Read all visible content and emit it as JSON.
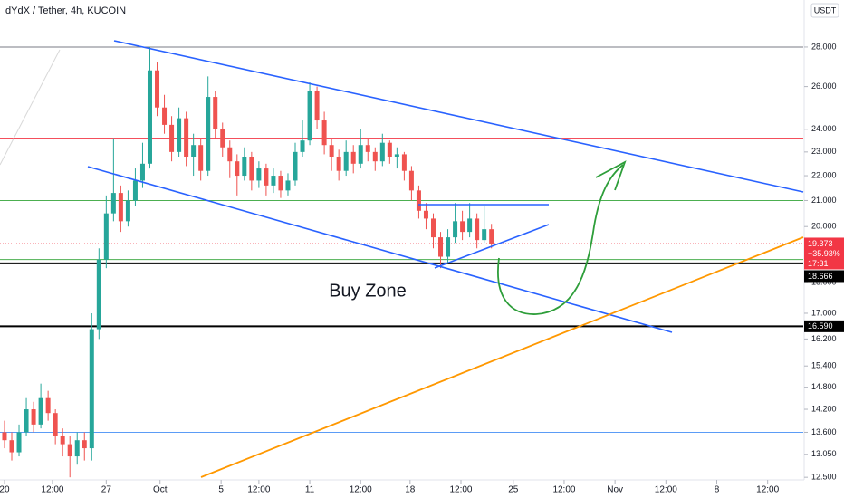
{
  "chart_data": {
    "type": "candlestick",
    "title": "dYdX / Tether, 4h, KUCOIN",
    "currency": "USDT",
    "annotation": "Buy Zone",
    "log_scale": true,
    "up_color": "#26a69a",
    "down_color": "#ef5350",
    "x": [
      0,
      0.5,
      1,
      1.5,
      2,
      2.5,
      3,
      3.5,
      4,
      4.5,
      5,
      5.5,
      6,
      6.5,
      7,
      7.5,
      8,
      8.5,
      9,
      9.5,
      10,
      10.5,
      11,
      11.5,
      12,
      12.5,
      13,
      13.5,
      14,
      14.5,
      15,
      15.5,
      16,
      16.5,
      17,
      17.5,
      18,
      18.5,
      19,
      19.5,
      20,
      20.5,
      21,
      21.5,
      22,
      22.5,
      23,
      23.5,
      24,
      24.5,
      25,
      25.5,
      26,
      26.5,
      27,
      27.5,
      28,
      28.5,
      29,
      29.5,
      30,
      30.5,
      31,
      31.5,
      32,
      32.5,
      33,
      33.5
    ],
    "open": [
      13.6,
      13.4,
      13.1,
      13.6,
      14.2,
      13.8,
      14.5,
      14.1,
      13.5,
      13.3,
      13.0,
      13.4,
      13.2,
      16.5,
      18.8,
      20.5,
      21.3,
      20.2,
      21.0,
      21.8,
      22.5,
      26.8,
      25.0,
      24.2,
      23.0,
      24.5,
      22.8,
      23.3,
      22.2,
      25.5,
      24.0,
      23.2,
      22.6,
      22.0,
      22.8,
      21.8,
      22.3,
      21.6,
      22.0,
      21.4,
      21.8,
      23.0,
      23.5,
      25.8,
      24.4,
      23.3,
      22.8,
      22.2,
      23.0,
      22.5,
      23.3,
      23.0,
      22.6,
      23.4,
      22.8,
      22.9,
      22.2,
      21.4,
      20.6,
      20.3,
      19.6,
      18.9,
      19.6,
      20.2,
      19.8,
      20.3,
      19.5,
      19.9
    ],
    "high": [
      13.9,
      13.6,
      13.8,
      14.5,
      14.4,
      14.9,
      14.7,
      14.2,
      13.7,
      13.5,
      13.6,
      13.6,
      17.0,
      19.2,
      21.2,
      23.6,
      21.6,
      21.4,
      22.3,
      23.4,
      28.0,
      27.2,
      25.6,
      24.6,
      25.0,
      24.8,
      23.8,
      23.6,
      26.5,
      25.8,
      24.3,
      23.5,
      22.9,
      23.2,
      23.0,
      22.6,
      22.5,
      22.3,
      22.2,
      22.1,
      23.4,
      24.4,
      26.2,
      26.0,
      24.8,
      23.6,
      23.1,
      23.5,
      23.3,
      24.0,
      23.6,
      23.2,
      23.8,
      23.5,
      23.2,
      23.0,
      22.4,
      21.6,
      20.9,
      20.5,
      19.8,
      19.9,
      20.9,
      20.6,
      20.9,
      20.5,
      20.8,
      20.1
    ],
    "low": [
      13.2,
      12.9,
      13.0,
      13.5,
      13.6,
      13.7,
      13.9,
      13.3,
      13.0,
      12.5,
      12.8,
      12.9,
      12.9,
      16.2,
      18.5,
      20.2,
      19.8,
      20.0,
      20.8,
      21.5,
      22.3,
      24.6,
      23.8,
      22.6,
      22.8,
      22.4,
      22.0,
      21.8,
      22.0,
      23.6,
      22.8,
      21.9,
      21.2,
      21.8,
      21.4,
      21.5,
      21.2,
      21.3,
      21.1,
      21.2,
      21.6,
      22.8,
      23.3,
      24.0,
      22.9,
      22.2,
      21.8,
      22.0,
      22.1,
      22.3,
      22.6,
      22.2,
      22.4,
      22.5,
      22.3,
      21.8,
      21.0,
      20.3,
      19.9,
      19.2,
      18.5,
      18.7,
      19.4,
      19.5,
      19.6,
      19.2,
      19.4,
      19.2
    ],
    "close": [
      13.4,
      13.1,
      13.6,
      14.2,
      13.8,
      14.5,
      14.1,
      13.5,
      13.3,
      13.0,
      13.4,
      13.2,
      16.5,
      18.8,
      20.5,
      21.3,
      20.2,
      21.0,
      21.8,
      22.5,
      26.8,
      25.0,
      24.2,
      23.0,
      24.5,
      22.8,
      23.3,
      22.2,
      25.5,
      24.0,
      23.2,
      22.6,
      22.0,
      22.8,
      21.8,
      22.3,
      21.6,
      22.0,
      21.4,
      21.8,
      23.0,
      23.5,
      25.8,
      24.4,
      23.3,
      22.8,
      22.2,
      23.0,
      22.5,
      23.3,
      23.0,
      22.6,
      23.4,
      22.8,
      22.9,
      22.2,
      21.4,
      20.6,
      20.3,
      19.6,
      18.9,
      19.6,
      20.2,
      19.8,
      20.3,
      19.5,
      19.9,
      19.373
    ],
    "xlim": [
      -0.31,
      54.95
    ],
    "xticks": [
      {
        "value": 0,
        "label": "20"
      },
      {
        "value": 3.3,
        "label": "12:00"
      },
      {
        "value": 7,
        "label": "27"
      },
      {
        "value": 10.7,
        "label": "Oct"
      },
      {
        "value": 14.9,
        "label": "5"
      },
      {
        "value": 17.5,
        "label": "12:00"
      },
      {
        "value": 21,
        "label": "11"
      },
      {
        "value": 24.5,
        "label": "12:00"
      },
      {
        "value": 27.9,
        "label": "18"
      },
      {
        "value": 31.4,
        "label": "12:00"
      },
      {
        "value": 35,
        "label": "25"
      },
      {
        "value": 38.5,
        "label": "12:00"
      },
      {
        "value": 42,
        "label": "Nov"
      },
      {
        "value": 45.5,
        "label": "12:00"
      },
      {
        "value": 49,
        "label": "8"
      },
      {
        "value": 52.5,
        "label": "12:00"
      }
    ],
    "ylim": [
      12.44,
      30.58
    ],
    "yticks": [
      {
        "value": 28,
        "label": "28.000"
      },
      {
        "value": 26,
        "label": "26.000"
      },
      {
        "value": 24,
        "label": "24.000"
      },
      {
        "value": 23,
        "label": "23.000"
      },
      {
        "value": 22,
        "label": "22.000"
      },
      {
        "value": 21,
        "label": "21.000"
      },
      {
        "value": 20,
        "label": "20.000"
      },
      {
        "value": 18,
        "label": "18.000"
      },
      {
        "value": 17,
        "label": "17.000"
      },
      {
        "value": 16.2,
        "label": "16.200"
      },
      {
        "value": 15.4,
        "label": "15.400"
      },
      {
        "value": 14.8,
        "label": "14.800"
      },
      {
        "value": 14.2,
        "label": "14.200"
      },
      {
        "value": 13.6,
        "label": "13.600"
      },
      {
        "value": 13.05,
        "label": "13.050"
      },
      {
        "value": 12.5,
        "label": "12.500"
      }
    ],
    "levels": [
      {
        "value": 28,
        "color": "#787b86"
      },
      {
        "value": 23.6,
        "color": "#f23645"
      },
      {
        "value": 21,
        "color": "#4caf50"
      },
      {
        "value": 18.8,
        "color": "#4caf50"
      },
      {
        "value": 18.666,
        "color": "#000000",
        "label": "18.666"
      },
      {
        "value": 16.59,
        "color": "#000000",
        "label": "16.590"
      },
      {
        "value": 13.6,
        "color": "#5b9cf6"
      }
    ],
    "last_price": {
      "value": 19.373,
      "label": "19.373",
      "change": "+35.93%",
      "countdown": "17:31",
      "color": "#f23645"
    }
  }
}
